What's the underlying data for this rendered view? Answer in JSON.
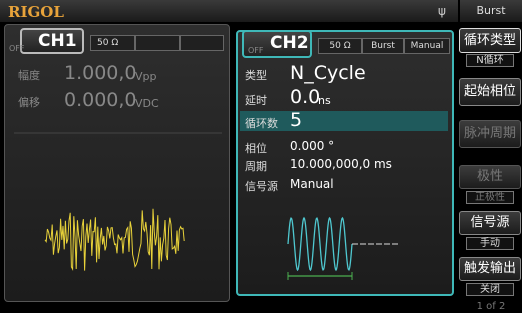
{
  "header": {
    "brand": "RIGOL",
    "menu_title": "Burst"
  },
  "ch1": {
    "status": "OFF",
    "name": "CH1",
    "load": "50 Ω",
    "params": [
      {
        "label": "幅度",
        "value": "1.000,0",
        "unit": "Vpp"
      },
      {
        "label": "偏移",
        "value": "0.000,0",
        "unit": "VDC"
      }
    ]
  },
  "ch2": {
    "status": "OFF",
    "name": "CH2",
    "fields": [
      "50 Ω",
      "Burst",
      "Manual"
    ],
    "params": [
      {
        "label": "类型",
        "value": "N_Cycle"
      },
      {
        "label": "延时",
        "value": "0.0",
        "unit": "ns"
      },
      {
        "label": "循环数",
        "value": "5"
      },
      {
        "label": "相位",
        "value": "0.000 °"
      },
      {
        "label": "周期",
        "value": "10.000,000,0 ms"
      },
      {
        "label": "信号源",
        "value": "Manual"
      }
    ]
  },
  "menu": {
    "items": [
      {
        "label": "循环类型",
        "option": "N循环"
      },
      {
        "label": "起始相位"
      },
      {
        "label": "脉冲周期"
      },
      {
        "label": "极性",
        "option": "正极性"
      },
      {
        "label": "信号源",
        "option": "手动"
      },
      {
        "label": "触发输出",
        "option": "关闭"
      }
    ],
    "page": "1 of 2"
  }
}
